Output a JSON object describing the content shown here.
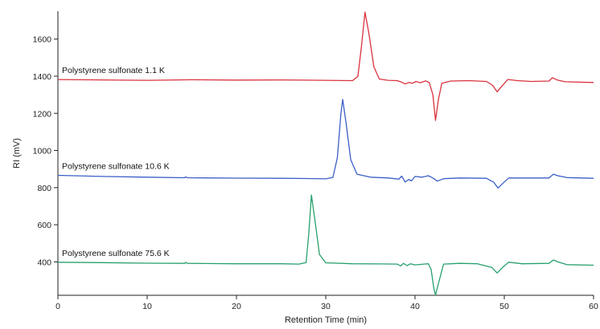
{
  "chart_data": {
    "type": "line",
    "title": "",
    "xlabel": "Retention Time (min)",
    "ylabel": "RI (mV)",
    "xlim": [
      0,
      60
    ],
    "ylim": [
      220,
      1750
    ],
    "x_ticks": [
      0,
      10,
      20,
      30,
      40,
      50,
      60
    ],
    "y_ticks": [
      400,
      600,
      800,
      1000,
      1200,
      1400,
      1600
    ],
    "grid": false,
    "legend": "none",
    "series": [
      {
        "name": "Polystyrene sulfonate 1.1 K",
        "color": "#d9333f",
        "points": [
          [
            0,
            1382
          ],
          [
            5,
            1380
          ],
          [
            10,
            1378
          ],
          [
            15,
            1381
          ],
          [
            20,
            1379
          ],
          [
            25,
            1380
          ],
          [
            30,
            1378
          ],
          [
            33,
            1376
          ],
          [
            33.6,
            1400
          ],
          [
            34,
            1560
          ],
          [
            34.4,
            1745
          ],
          [
            34.8,
            1640
          ],
          [
            35.4,
            1450
          ],
          [
            36,
            1385
          ],
          [
            37,
            1378
          ],
          [
            38,
            1376
          ],
          [
            38.5,
            1368
          ],
          [
            38.9,
            1358
          ],
          [
            39.3,
            1366
          ],
          [
            39.7,
            1362
          ],
          [
            40.1,
            1372
          ],
          [
            40.6,
            1365
          ],
          [
            41.2,
            1375
          ],
          [
            41.6,
            1365
          ],
          [
            42,
            1300
          ],
          [
            42.3,
            1162
          ],
          [
            42.6,
            1270
          ],
          [
            43,
            1362
          ],
          [
            44,
            1374
          ],
          [
            46,
            1376
          ],
          [
            48,
            1372
          ],
          [
            48.7,
            1350
          ],
          [
            49.2,
            1316
          ],
          [
            49.7,
            1345
          ],
          [
            50.4,
            1382
          ],
          [
            51.5,
            1376
          ],
          [
            53,
            1372
          ],
          [
            55,
            1374
          ],
          [
            55.4,
            1392
          ],
          [
            55.9,
            1380
          ],
          [
            56.8,
            1370
          ],
          [
            60,
            1366
          ]
        ]
      },
      {
        "name": "Polystyrene sulfonate 10.6 K",
        "color": "#3a5fc7",
        "points": [
          [
            0,
            866
          ],
          [
            5,
            860
          ],
          [
            10,
            856
          ],
          [
            14.2,
            853
          ],
          [
            14.3,
            858
          ],
          [
            14.5,
            853
          ],
          [
            20,
            851
          ],
          [
            25,
            850
          ],
          [
            28,
            849
          ],
          [
            30,
            847
          ],
          [
            30.8,
            855
          ],
          [
            31.3,
            960
          ],
          [
            31.7,
            1200
          ],
          [
            31.9,
            1275
          ],
          [
            32.3,
            1140
          ],
          [
            32.8,
            950
          ],
          [
            33.5,
            872
          ],
          [
            35,
            856
          ],
          [
            37,
            852
          ],
          [
            38.2,
            846
          ],
          [
            38.5,
            862
          ],
          [
            38.9,
            830
          ],
          [
            39.3,
            844
          ],
          [
            39.6,
            836
          ],
          [
            40,
            860
          ],
          [
            40.8,
            856
          ],
          [
            41.5,
            864
          ],
          [
            42,
            852
          ],
          [
            42.5,
            835
          ],
          [
            43.2,
            848
          ],
          [
            45,
            852
          ],
          [
            48,
            850
          ],
          [
            48.8,
            830
          ],
          [
            49.3,
            798
          ],
          [
            49.9,
            826
          ],
          [
            50.5,
            852
          ],
          [
            52,
            852
          ],
          [
            55,
            852
          ],
          [
            55.5,
            872
          ],
          [
            56,
            864
          ],
          [
            57,
            854
          ],
          [
            60,
            850
          ]
        ]
      },
      {
        "name": "Polystyrene sulfonate 75.6 K",
        "color": "#27a06e",
        "points": [
          [
            0,
            398
          ],
          [
            5,
            396
          ],
          [
            10,
            393
          ],
          [
            14.2,
            392
          ],
          [
            14.3,
            397
          ],
          [
            14.5,
            392
          ],
          [
            20,
            390
          ],
          [
            25,
            390
          ],
          [
            27,
            388
          ],
          [
            27.8,
            396
          ],
          [
            28.1,
            550
          ],
          [
            28.4,
            760
          ],
          [
            28.8,
            620
          ],
          [
            29.3,
            440
          ],
          [
            30,
            395
          ],
          [
            33,
            390
          ],
          [
            36,
            389
          ],
          [
            38,
            388
          ],
          [
            38.4,
            378
          ],
          [
            38.7,
            392
          ],
          [
            39.1,
            380
          ],
          [
            39.5,
            390
          ],
          [
            40,
            384
          ],
          [
            41,
            388
          ],
          [
            41.5,
            390
          ],
          [
            41.8,
            360
          ],
          [
            42.1,
            260
          ],
          [
            42.3,
            222
          ],
          [
            42.6,
            280
          ],
          [
            43.2,
            388
          ],
          [
            45,
            392
          ],
          [
            47,
            390
          ],
          [
            48.6,
            370
          ],
          [
            49.2,
            340
          ],
          [
            49.8,
            370
          ],
          [
            50.5,
            398
          ],
          [
            52,
            390
          ],
          [
            55,
            392
          ],
          [
            55.5,
            410
          ],
          [
            56,
            400
          ],
          [
            57,
            385
          ],
          [
            60,
            382
          ]
        ]
      }
    ]
  }
}
